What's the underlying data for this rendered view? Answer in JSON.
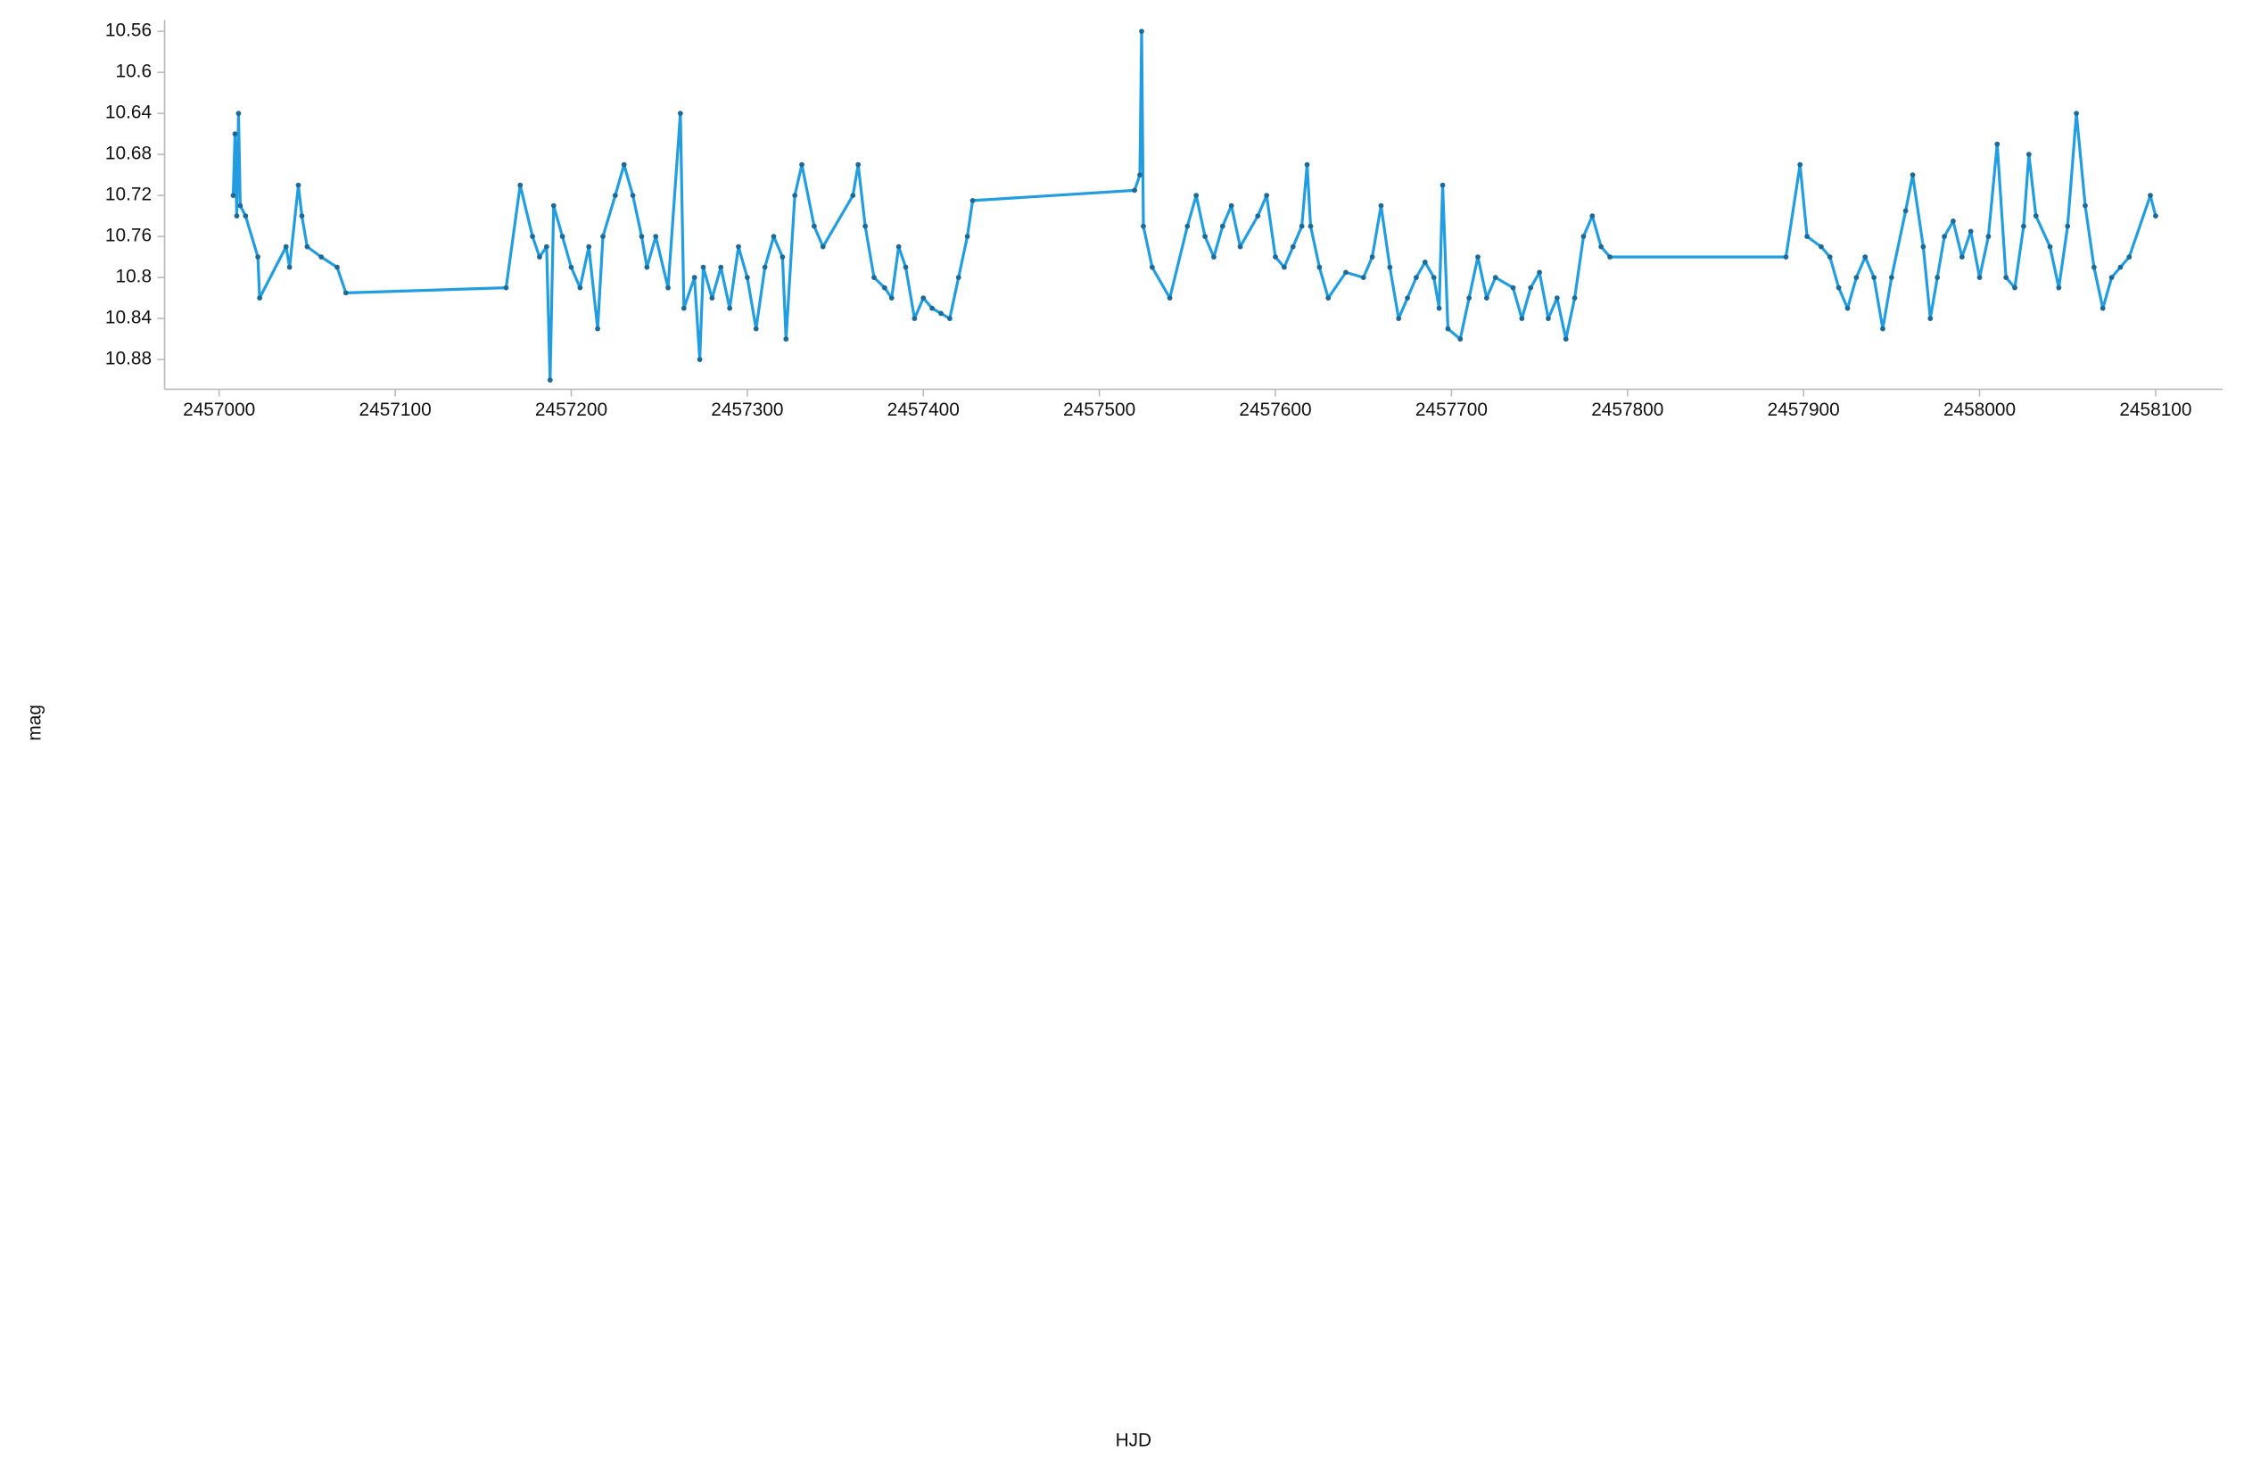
{
  "chart_data": {
    "type": "line",
    "x_label": "HJD",
    "y_label": "mag",
    "xlim": [
      2456969,
      2458138
    ],
    "ylim": [
      10.909,
      10.549
    ],
    "xticks": [
      2457000,
      2457100,
      2457200,
      2457300,
      2457400,
      2457500,
      2457600,
      2457700,
      2457800,
      2457900,
      2458000,
      2458100
    ],
    "yticks": [
      10.56,
      10.6,
      10.64,
      10.68,
      10.72,
      10.76,
      10.8,
      10.84,
      10.88
    ],
    "x": [
      2457008,
      2457009,
      2457010,
      2457011,
      2457012,
      2457015,
      2457022,
      2457023,
      2457038,
      2457040,
      2457045,
      2457047,
      2457050,
      2457058,
      2457067,
      2457072,
      2457163,
      2457171,
      2457178,
      2457182,
      2457186,
      2457188,
      2457190,
      2457195,
      2457200,
      2457205,
      2457210,
      2457215,
      2457218,
      2457225,
      2457230,
      2457235,
      2457240,
      2457243,
      2457248,
      2457255,
      2457262,
      2457264,
      2457270,
      2457273,
      2457275,
      2457280,
      2457285,
      2457290,
      2457295,
      2457300,
      2457305,
      2457310,
      2457315,
      2457320,
      2457322,
      2457327,
      2457331,
      2457338,
      2457343,
      2457360,
      2457363,
      2457367,
      2457372,
      2457378,
      2457382,
      2457386,
      2457390,
      2457395,
      2457400,
      2457405,
      2457410,
      2457415,
      2457420,
      2457425,
      2457428,
      2457520,
      2457523,
      2457524,
      2457525,
      2457530,
      2457540,
      2457550,
      2457555,
      2457560,
      2457565,
      2457570,
      2457575,
      2457580,
      2457590,
      2457595,
      2457600,
      2457605,
      2457610,
      2457615,
      2457618,
      2457620,
      2457625,
      2457630,
      2457640,
      2457650,
      2457655,
      2457660,
      2457665,
      2457670,
      2457675,
      2457680,
      2457685,
      2457690,
      2457693,
      2457695,
      2457698,
      2457705,
      2457710,
      2457715,
      2457720,
      2457725,
      2457735,
      2457740,
      2457745,
      2457750,
      2457755,
      2457760,
      2457765,
      2457770,
      2457775,
      2457780,
      2457785,
      2457790,
      2457890,
      2457898,
      2457902,
      2457910,
      2457915,
      2457920,
      2457925,
      2457930,
      2457935,
      2457940,
      2457945,
      2457950,
      2457958,
      2457962,
      2457968,
      2457972,
      2457976,
      2457980,
      2457985,
      2457990,
      2457995,
      2458000,
      2458005,
      2458010,
      2458015,
      2458020,
      2458025,
      2458028,
      2458032,
      2458040,
      2458045,
      2458050,
      2458055,
      2458060,
      2458065,
      2458070,
      2458075,
      2458080,
      2458085,
      2458097,
      2458100
    ],
    "series": [
      {
        "color": "#229ee0",
        "marker_color": "#1d6a98",
        "values": [
          10.72,
          10.66,
          10.74,
          10.64,
          10.73,
          10.74,
          10.78,
          10.82,
          10.77,
          10.79,
          10.71,
          10.74,
          10.77,
          10.78,
          10.79,
          10.815,
          10.81,
          10.71,
          10.76,
          10.78,
          10.77,
          10.9,
          10.73,
          10.76,
          10.79,
          10.81,
          10.77,
          10.85,
          10.76,
          10.72,
          10.69,
          10.72,
          10.76,
          10.79,
          10.76,
          10.81,
          10.64,
          10.83,
          10.8,
          10.88,
          10.79,
          10.82,
          10.79,
          10.83,
          10.77,
          10.8,
          10.85,
          10.79,
          10.76,
          10.78,
          10.86,
          10.72,
          10.69,
          10.75,
          10.77,
          10.72,
          10.69,
          10.75,
          10.8,
          10.81,
          10.82,
          10.77,
          10.79,
          10.84,
          10.82,
          10.83,
          10.835,
          10.84,
          10.8,
          10.76,
          10.725,
          10.715,
          10.7,
          10.56,
          10.75,
          10.79,
          10.82,
          10.75,
          10.72,
          10.76,
          10.78,
          10.75,
          10.73,
          10.77,
          10.74,
          10.72,
          10.78,
          10.79,
          10.77,
          10.75,
          10.69,
          10.75,
          10.79,
          10.82,
          10.795,
          10.8,
          10.78,
          10.73,
          10.79,
          10.84,
          10.82,
          10.8,
          10.785,
          10.8,
          10.83,
          10.71,
          10.85,
          10.86,
          10.82,
          10.78,
          10.82,
          10.8,
          10.81,
          10.84,
          10.81,
          10.795,
          10.84,
          10.82,
          10.86,
          10.82,
          10.76,
          10.74,
          10.77,
          10.78,
          10.78,
          10.69,
          10.76,
          10.77,
          10.78,
          10.81,
          10.83,
          10.8,
          10.78,
          10.8,
          10.85,
          10.8,
          10.735,
          10.7,
          10.77,
          10.84,
          10.8,
          10.76,
          10.745,
          10.78,
          10.755,
          10.8,
          10.76,
          10.67,
          10.8,
          10.81,
          10.75,
          10.68,
          10.74,
          10.77,
          10.81,
          10.75,
          10.64,
          10.73,
          10.79,
          10.83,
          10.8,
          10.79,
          10.78,
          10.72,
          10.74
        ]
      }
    ]
  }
}
